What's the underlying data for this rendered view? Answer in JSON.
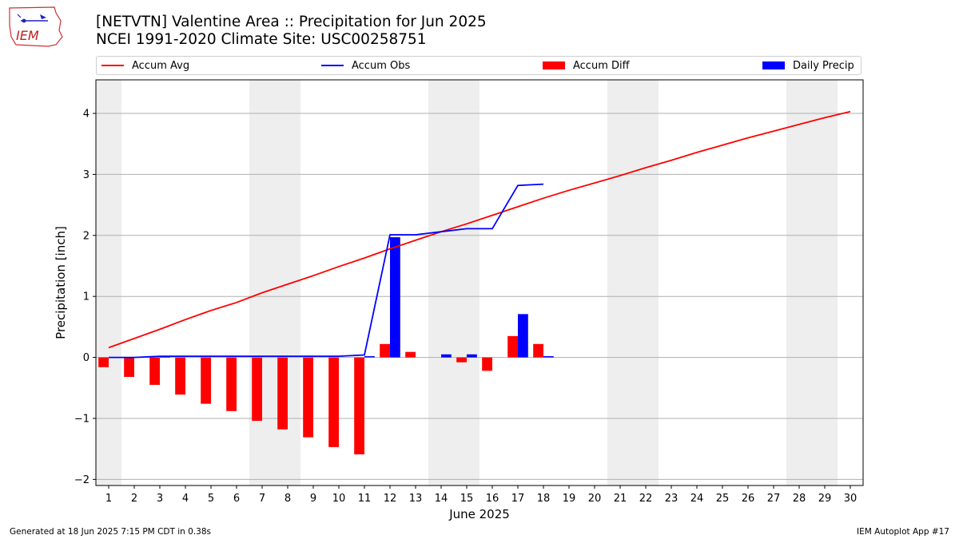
{
  "header": {
    "title_line1": "[NETVTN] Valentine Area :: Precipitation for Jun 2025",
    "title_line2": "NCEI 1991-2020 Climate Site: USC00258751",
    "logo_text": "IEM"
  },
  "footer": {
    "left": "Generated at 18 Jun 2025 7:15 PM CDT in 0.38s",
    "right": "IEM Autoplot App #17"
  },
  "colors": {
    "avg": "#ff0000",
    "obs": "#0000ff",
    "diff": "#ff0000",
    "daily": "#0000ff",
    "weekend_shade": "#eeeeee",
    "grid": "#b0b0b0"
  },
  "chart_data": {
    "type": "bar",
    "xlabel": "June 2025",
    "ylabel": "Precipitation [inch]",
    "xlim": [
      0.5,
      30.5
    ],
    "ylim": [
      -2.1,
      4.55
    ],
    "yticks": [
      -2,
      -1,
      0,
      1,
      2,
      3,
      4
    ],
    "ytick_labels": [
      "−2",
      "−1",
      "0",
      "1",
      "2",
      "3",
      "4"
    ],
    "x": [
      1,
      2,
      3,
      4,
      5,
      6,
      7,
      8,
      9,
      10,
      11,
      12,
      13,
      14,
      15,
      16,
      17,
      18,
      19,
      20,
      21,
      22,
      23,
      24,
      25,
      26,
      27,
      28,
      29,
      30
    ],
    "grid": "horizontal",
    "legend_position": "top",
    "weekend_days": [
      1,
      7,
      8,
      14,
      15,
      21,
      22,
      28,
      29
    ],
    "series": [
      {
        "name": "Accum Avg",
        "kind": "line",
        "x": [
          1,
          2,
          3,
          4,
          5,
          6,
          7,
          8,
          9,
          10,
          11,
          12,
          13,
          14,
          15,
          16,
          17,
          18,
          19,
          20,
          21,
          22,
          23,
          24,
          25,
          26,
          27,
          28,
          29,
          30
        ],
        "values": [
          0.16,
          0.31,
          0.46,
          0.62,
          0.77,
          0.9,
          1.06,
          1.2,
          1.34,
          1.49,
          1.63,
          1.78,
          1.92,
          2.06,
          2.19,
          2.33,
          2.47,
          2.61,
          2.74,
          2.86,
          2.98,
          3.11,
          3.23,
          3.36,
          3.48,
          3.6,
          3.71,
          3.82,
          3.93,
          4.03
        ]
      },
      {
        "name": "Accum Obs",
        "kind": "line",
        "x": [
          1,
          2,
          3,
          4,
          5,
          6,
          7,
          8,
          9,
          10,
          11,
          12,
          13,
          14,
          15,
          16,
          17,
          18
        ],
        "values": [
          0.0,
          0.0,
          0.02,
          0.02,
          0.02,
          0.02,
          0.02,
          0.02,
          0.02,
          0.02,
          0.04,
          2.01,
          2.01,
          2.06,
          2.11,
          2.11,
          2.82,
          2.84
        ]
      },
      {
        "name": "Accum Diff",
        "kind": "bar",
        "x": [
          1,
          2,
          3,
          4,
          5,
          6,
          7,
          8,
          9,
          10,
          11,
          12,
          13,
          14,
          15,
          16,
          17,
          18
        ],
        "values": [
          -0.16,
          -0.32,
          -0.45,
          -0.61,
          -0.76,
          -0.88,
          -1.04,
          -1.18,
          -1.31,
          -1.47,
          -1.59,
          0.22,
          0.09,
          0.0,
          -0.08,
          -0.22,
          0.35,
          0.22
        ]
      },
      {
        "name": "Daily Precip",
        "kind": "bar",
        "x": [
          1,
          2,
          3,
          4,
          5,
          6,
          7,
          8,
          9,
          10,
          11,
          12,
          13,
          14,
          15,
          16,
          17,
          18
        ],
        "values": [
          0.0,
          0.0,
          0.02,
          0.0,
          0.0,
          0.0,
          0.0,
          0.0,
          0.0,
          0.0,
          0.02,
          1.97,
          0.0,
          0.05,
          0.05,
          0.0,
          0.71,
          0.02
        ]
      }
    ]
  }
}
